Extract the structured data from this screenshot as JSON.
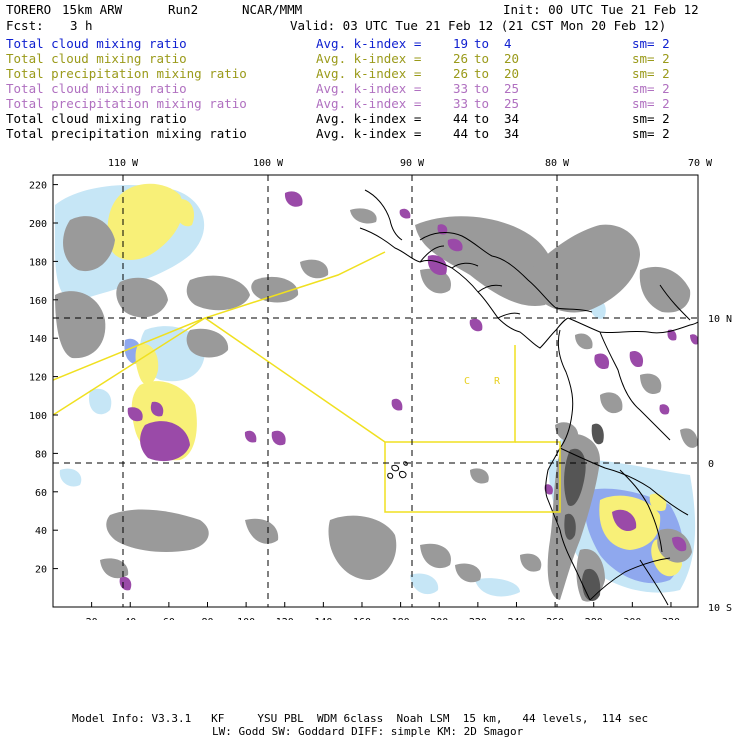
{
  "header": {
    "model": "TORERO",
    "resolution": "15km ARW",
    "run": "Run2",
    "source": "NCAR/MMM",
    "init": "Init: 00 UTC Tue 21 Feb 12",
    "fcst_label": "Fcst:",
    "fcst_value": "3 h",
    "valid": "Valid: 03 UTC Tue 21 Feb 12 (21 CST Mon 20 Feb 12)"
  },
  "legend": [
    {
      "name": "Total cloud mixing ratio",
      "idx": "Avg. k-index =",
      "v1": "19",
      "to": "to",
      "v2": "4",
      "sm": "sm= 2",
      "color": "#1020d0"
    },
    {
      "name": "Total cloud mixing ratio",
      "idx": "Avg. k-index =",
      "v1": "26",
      "to": "to",
      "v2": "20",
      "sm": "sm= 2",
      "color": "#9a9a1a"
    },
    {
      "name": "Total precipitation mixing ratio",
      "idx": "Avg. k-index =",
      "v1": "26",
      "to": "to",
      "v2": "20",
      "sm": "sm= 2",
      "color": "#9a9a1a"
    },
    {
      "name": "Total cloud mixing ratio",
      "idx": "Avg. k-index =",
      "v1": "33",
      "to": "to",
      "v2": "25",
      "sm": "sm= 2",
      "color": "#b070c0"
    },
    {
      "name": "Total precipitation mixing ratio",
      "idx": "Avg. k-index =",
      "v1": "33",
      "to": "to",
      "v2": "25",
      "sm": "sm= 2",
      "color": "#b070c0"
    },
    {
      "name": "Total cloud mixing ratio",
      "idx": "Avg. k-index =",
      "v1": "44",
      "to": "to",
      "v2": "34",
      "sm": "sm= 2",
      "color": "#000000"
    },
    {
      "name": "Total precipitation mixing ratio",
      "idx": "Avg. k-index =",
      "v1": "44",
      "to": "to",
      "v2": "34",
      "sm": "sm= 2",
      "color": "#000000"
    }
  ],
  "map": {
    "lon_labels": [
      "110 W",
      "100 W",
      "90 W",
      "80 W",
      "70 W"
    ],
    "lat_labels": [
      "10 N",
      "0",
      "10 S"
    ],
    "x_ticks": [
      "20",
      "40",
      "60",
      "80",
      "100",
      "120",
      "140",
      "160",
      "180",
      "200",
      "220",
      "240",
      "260",
      "280",
      "300",
      "320"
    ],
    "y_ticks": [
      "220",
      "200",
      "180",
      "160",
      "140",
      "120",
      "100",
      "80",
      "60",
      "40",
      "20"
    ],
    "region_labels": [
      "C",
      "R"
    ],
    "colors": {
      "cloud_gray": "#9a9a9a",
      "dark_gray": "#555555",
      "purple": "#9a4aa8",
      "yellow": "#f8f078",
      "light_blue": "#c6e6f6",
      "blue": "#8fa8ee",
      "domain_lines": "#f0e020"
    }
  },
  "footer": {
    "line1": "Model Info: V3.3.1   KF     YSU PBL  WDM 6class  Noah LSM  15 km,   44 levels,  114 sec",
    "line2": "LW: Godd SW: Goddard DIFF: simple KM: 2D Smagor"
  }
}
